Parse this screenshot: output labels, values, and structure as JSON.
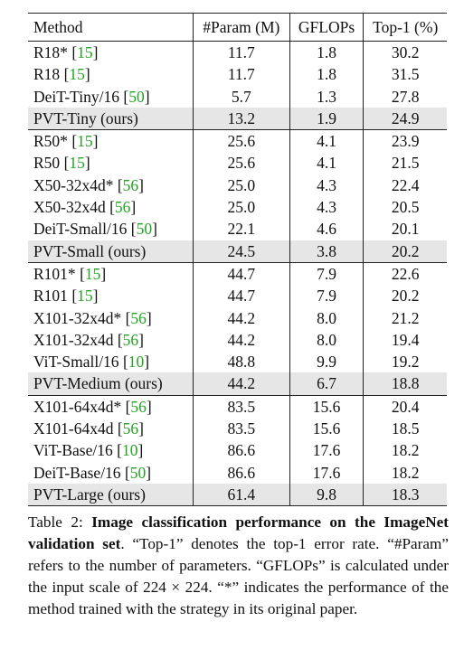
{
  "table": {
    "headers": [
      "Method",
      "#Param (M)",
      "GFLOPs",
      "Top-1 (%)"
    ],
    "groups": [
      [
        {
          "method": "R18*",
          "cite": "15",
          "params": "11.7",
          "gflops": "1.8",
          "top1": "30.2",
          "ours": false
        },
        {
          "method": "R18",
          "cite": "15",
          "params": "11.7",
          "gflops": "1.8",
          "top1": "31.5",
          "ours": false
        },
        {
          "method": "DeiT-Tiny/16",
          "cite": "50",
          "params": "5.7",
          "gflops": "1.3",
          "top1": "27.8",
          "ours": false
        },
        {
          "method": "PVT-Tiny (ours)",
          "cite": "",
          "params": "13.2",
          "gflops": "1.9",
          "top1": "24.9",
          "ours": true
        }
      ],
      [
        {
          "method": "R50*",
          "cite": "15",
          "params": "25.6",
          "gflops": "4.1",
          "top1": "23.9",
          "ours": false
        },
        {
          "method": "R50",
          "cite": "15",
          "params": "25.6",
          "gflops": "4.1",
          "top1": "21.5",
          "ours": false
        },
        {
          "method": "X50-32x4d*",
          "cite": "56",
          "params": "25.0",
          "gflops": "4.3",
          "top1": "22.4",
          "ours": false
        },
        {
          "method": "X50-32x4d",
          "cite": "56",
          "params": "25.0",
          "gflops": "4.3",
          "top1": "20.5",
          "ours": false
        },
        {
          "method": "DeiT-Small/16",
          "cite": "50",
          "params": "22.1",
          "gflops": "4.6",
          "top1": "20.1",
          "ours": false
        },
        {
          "method": "PVT-Small (ours)",
          "cite": "",
          "params": "24.5",
          "gflops": "3.8",
          "top1": "20.2",
          "ours": true
        }
      ],
      [
        {
          "method": "R101*",
          "cite": "15",
          "params": "44.7",
          "gflops": "7.9",
          "top1": "22.6",
          "ours": false
        },
        {
          "method": "R101",
          "cite": "15",
          "params": "44.7",
          "gflops": "7.9",
          "top1": "20.2",
          "ours": false
        },
        {
          "method": "X101-32x4d*",
          "cite": "56",
          "params": "44.2",
          "gflops": "8.0",
          "top1": "21.2",
          "ours": false
        },
        {
          "method": "X101-32x4d",
          "cite": "56",
          "params": "44.2",
          "gflops": "8.0",
          "top1": "19.4",
          "ours": false
        },
        {
          "method": "ViT-Small/16",
          "cite": "10",
          "params": "48.8",
          "gflops": "9.9",
          "top1": "19.2",
          "ours": false
        },
        {
          "method": "PVT-Medium (ours)",
          "cite": "",
          "params": "44.2",
          "gflops": "6.7",
          "top1": "18.8",
          "ours": true
        }
      ],
      [
        {
          "method": "X101-64x4d*",
          "cite": "56",
          "params": "83.5",
          "gflops": "15.6",
          "top1": "20.4",
          "ours": false
        },
        {
          "method": "X101-64x4d",
          "cite": "56",
          "params": "83.5",
          "gflops": "15.6",
          "top1": "18.5",
          "ours": false
        },
        {
          "method": "ViT-Base/16",
          "cite": "10",
          "params": "86.6",
          "gflops": "17.6",
          "top1": "18.2",
          "ours": false
        },
        {
          "method": "DeiT-Base/16",
          "cite": "50",
          "params": "86.6",
          "gflops": "17.6",
          "top1": "18.2",
          "ours": false
        },
        {
          "method": "PVT-Large (ours)",
          "cite": "",
          "params": "61.4",
          "gflops": "9.8",
          "top1": "18.3",
          "ours": true
        }
      ]
    ],
    "ours_row_color": "#e6e6e6",
    "citation_color": "#22a622"
  },
  "caption": {
    "label": "Table 2: ",
    "bold": "Image classification performance on the ImageNet validation set",
    "rest": ". “Top-1” denotes the top-1 error rate. “#Param” refers to the number of parameters. “GFLOPs” is calculated under the input scale of 224 × 224. “*” indicates the performance of the method trained with the strategy in its original paper."
  }
}
